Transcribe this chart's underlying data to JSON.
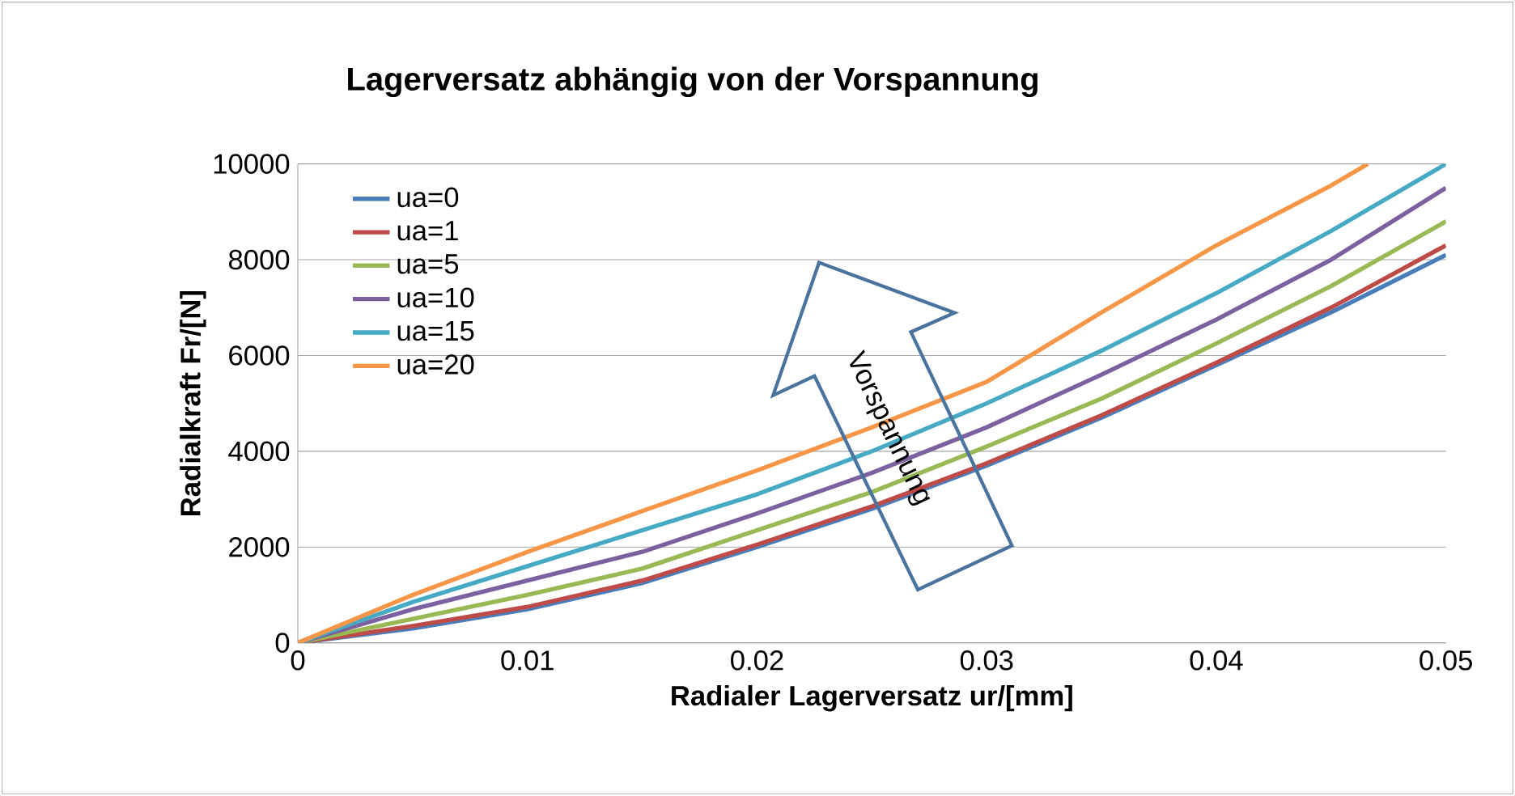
{
  "chart_data": {
    "type": "line",
    "title": "Lagerversatz abhängig von der Vorspannung",
    "xlabel": "Radialer Lagerversatz ur/[mm]",
    "ylabel": "Radialkraft Fr/[N]",
    "x": [
      0,
      0.005,
      0.01,
      0.015,
      0.02,
      0.025,
      0.03,
      0.035,
      0.04,
      0.045,
      0.05
    ],
    "series": [
      {
        "name": "ua=0",
        "color": "#4a7ebb",
        "values": [
          0,
          300,
          700,
          1250,
          2000,
          2800,
          3700,
          4700,
          5800,
          6900,
          8100
        ]
      },
      {
        "name": "ua=1",
        "color": "#be4b48",
        "values": [
          0,
          350,
          750,
          1300,
          2050,
          2850,
          3750,
          4750,
          5850,
          7000,
          8300
        ]
      },
      {
        "name": "ua=5",
        "color": "#98b954",
        "values": [
          0,
          500,
          1000,
          1550,
          2350,
          3150,
          4100,
          5100,
          6250,
          7450,
          8800
        ]
      },
      {
        "name": "ua=10",
        "color": "#7d60a0",
        "values": [
          0,
          700,
          1300,
          1900,
          2700,
          3550,
          4500,
          5600,
          6750,
          8000,
          9500
        ]
      },
      {
        "name": "ua=15",
        "color": "#46aac5",
        "values": [
          0,
          850,
          1600,
          2350,
          3100,
          4000,
          5000,
          6100,
          7300,
          8600,
          10000
        ]
      },
      {
        "name": "ua=20",
        "color": "#f79646",
        "x": [
          0,
          0.005,
          0.01,
          0.015,
          0.02,
          0.025,
          0.03,
          0.035,
          0.04,
          0.045,
          0.0466
        ],
        "values": [
          0,
          1000,
          1900,
          2750,
          3600,
          4500,
          5450,
          6900,
          8300,
          9550,
          10000
        ]
      }
    ],
    "xlim": [
      0,
      0.05
    ],
    "ylim": [
      0,
      10000
    ],
    "xticks": [
      0,
      0.01,
      0.02,
      0.03,
      0.04,
      0.05
    ],
    "yticks": [
      0,
      2000,
      4000,
      6000,
      8000,
      10000
    ],
    "grid": "y",
    "legend": "top left",
    "marker": "none",
    "line_style": "solid",
    "annotations": [
      "Vorspannung"
    ]
  }
}
